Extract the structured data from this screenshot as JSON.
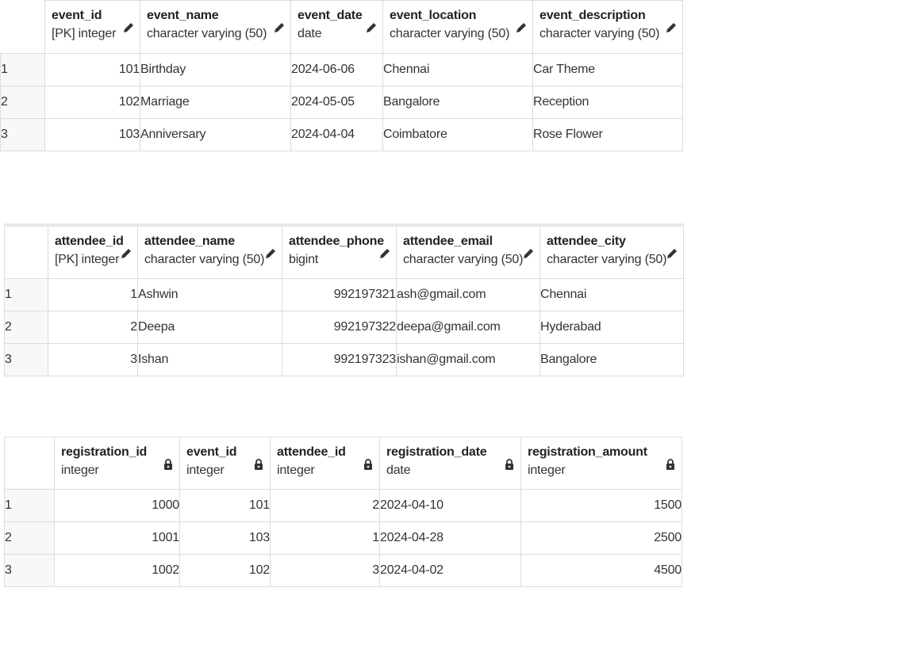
{
  "tables": [
    {
      "columns": [
        {
          "name": "event_id",
          "type": "[PK] integer",
          "icon": "pencil-icon",
          "align": "num"
        },
        {
          "name": "event_name",
          "type": "character varying (50)",
          "icon": "pencil-icon",
          "align": "txt"
        },
        {
          "name": "event_date",
          "type": "date",
          "icon": "pencil-icon",
          "align": "txt"
        },
        {
          "name": "event_location",
          "type": "character varying (50)",
          "icon": "pencil-icon",
          "align": "txt"
        },
        {
          "name": "event_description",
          "type": "character varying (50)",
          "icon": "pencil-icon",
          "align": "txt"
        }
      ],
      "rows": [
        {
          "n": "1",
          "cells": [
            "101",
            "Birthday",
            "2024-06-06",
            "Chennai",
            "Car Theme"
          ]
        },
        {
          "n": "2",
          "cells": [
            "102",
            "Marriage",
            "2024-05-05",
            "Bangalore",
            "Reception"
          ]
        },
        {
          "n": "3",
          "cells": [
            "103",
            "Anniversary",
            "2024-04-04",
            "Coimbatore",
            "Rose Flower"
          ]
        }
      ]
    },
    {
      "columns": [
        {
          "name": "attendee_id",
          "type": "[PK] integer",
          "icon": "pencil-icon",
          "align": "num"
        },
        {
          "name": "attendee_name",
          "type": "character varying (50)",
          "icon": "pencil-icon",
          "align": "txt"
        },
        {
          "name": "attendee_phone",
          "type": "bigint",
          "icon": "pencil-icon",
          "align": "num"
        },
        {
          "name": "attendee_email",
          "type": "character varying (50)",
          "icon": "pencil-icon",
          "align": "txt"
        },
        {
          "name": "attendee_city",
          "type": "character varying (50)",
          "icon": "pencil-icon",
          "align": "txt"
        }
      ],
      "rows": [
        {
          "n": "1",
          "cells": [
            "1",
            "Ashwin",
            "992197321",
            "ash@gmail.com",
            "Chennai"
          ]
        },
        {
          "n": "2",
          "cells": [
            "2",
            "Deepa",
            "992197322",
            "deepa@gmail.com",
            "Hyderabad"
          ]
        },
        {
          "n": "3",
          "cells": [
            "3",
            "Ishan",
            "992197323",
            "ishan@gmail.com",
            "Bangalore"
          ]
        }
      ]
    },
    {
      "columns": [
        {
          "name": "registration_id",
          "type": "integer",
          "icon": "lock-icon",
          "align": "num"
        },
        {
          "name": "event_id",
          "type": "integer",
          "icon": "lock-icon",
          "align": "num"
        },
        {
          "name": "attendee_id",
          "type": "integer",
          "icon": "lock-icon",
          "align": "num"
        },
        {
          "name": "registration_date",
          "type": "date",
          "icon": "lock-icon",
          "align": "txt"
        },
        {
          "name": "registration_amount",
          "type": "integer",
          "icon": "lock-icon",
          "align": "num"
        }
      ],
      "rows": [
        {
          "n": "1",
          "cells": [
            "1000",
            "101",
            "2",
            "2024-04-10",
            "1500"
          ]
        },
        {
          "n": "2",
          "cells": [
            "1001",
            "103",
            "1",
            "2024-04-28",
            "2500"
          ]
        },
        {
          "n": "3",
          "cells": [
            "1002",
            "102",
            "3",
            "2024-04-02",
            "4500"
          ]
        }
      ]
    }
  ]
}
